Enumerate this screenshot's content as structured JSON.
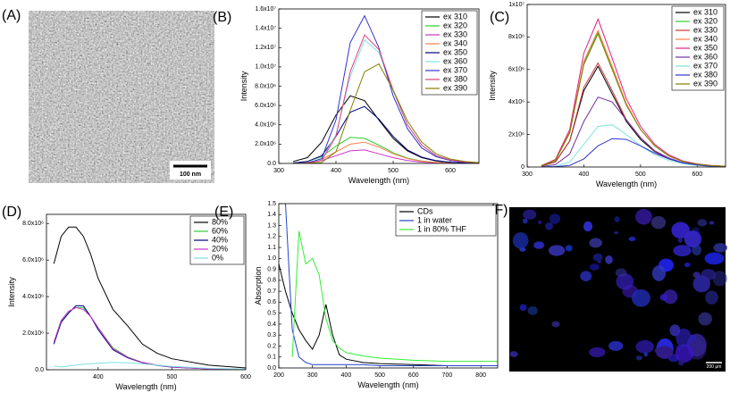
{
  "images": [
    {
      "label": "(A)",
      "scale_bar": "100 nm"
    },
    {
      "label": "(F)",
      "scale_bar": "200 µm"
    }
  ],
  "chart_data": [
    {
      "type": "line",
      "label": "(B)",
      "x_label": "Wavelength (nm)",
      "y_label": "Intensity",
      "legend": "upper right",
      "xlim": [
        300,
        650
      ],
      "xticks": [
        300,
        400,
        500,
        600
      ],
      "ylim": [
        0,
        16000000.0
      ],
      "yticks": [
        {
          "value": 0,
          "label": "0.0"
        },
        {
          "value": 2000000.0,
          "label": "2.0x10⁶"
        },
        {
          "value": 4000000.0,
          "label": "4.0x10⁶"
        },
        {
          "value": 6000000.0,
          "label": "6.0x10⁶"
        },
        {
          "value": 8000000.0,
          "label": "8.0x10⁶"
        },
        {
          "value": 10000000.0,
          "label": "1.0x10⁷"
        },
        {
          "value": 12000000.0,
          "label": "1.2x10⁷"
        },
        {
          "value": 14000000.0,
          "label": "1.4x10⁷"
        },
        {
          "value": 16000000.0,
          "label": "1.6x10⁷"
        }
      ],
      "x": [
        325,
        350,
        375,
        400,
        425,
        450,
        475,
        500,
        525,
        550,
        575,
        600,
        625,
        650
      ],
      "series": [
        {
          "name": "ex 310",
          "color": "#000000",
          "values": [
            200000.0,
            600000.0,
            2200000.0,
            5000000.0,
            7000000.0,
            6500000.0,
            4500000.0,
            2600000.0,
            1300000.0,
            600000.0,
            250000.0,
            100000.0,
            50000.0,
            20000.0
          ]
        },
        {
          "name": "ex 320",
          "color": "#33cc33",
          "values": [
            50000.0,
            200000.0,
            700000.0,
            1800000.0,
            2700000.0,
            2600000.0,
            1900000.0,
            1100000.0,
            550000.0,
            250000.0,
            100000.0,
            50000.0,
            20000.0,
            10000.0
          ]
        },
        {
          "name": "ex 330",
          "color": "#cc33cc",
          "values": [
            20000.0,
            80000.0,
            300000.0,
            800000.0,
            1300000.0,
            1400000.0,
            1000000.0,
            600000.0,
            300000.0,
            140000.0,
            60000.0,
            30000.0,
            10000.0,
            10000.0
          ]
        },
        {
          "name": "ex 340",
          "color": "#ff7f50",
          "values": [
            20000.0,
            100000.0,
            400000.0,
            1200000.0,
            2000000.0,
            2200000.0,
            1700000.0,
            1000000.0,
            500000.0,
            220000.0,
            100000.0,
            40000.0,
            20000.0,
            10000.0
          ]
        },
        {
          "name": "ex 350",
          "color": "#000080",
          "values": [
            50000.0,
            200000.0,
            800000.0,
            2800000.0,
            5300000.0,
            5900000.0,
            4600000.0,
            2800000.0,
            1400000.0,
            650000.0,
            300000.0,
            120000.0,
            50000.0,
            20000.0
          ]
        },
        {
          "name": "ex 360",
          "color": "#7fe0e0",
          "values": [
            0,
            50000.0,
            400000.0,
            3000000.0,
            9000000.0,
            12800000.0,
            11500000.0,
            7500000.0,
            4000000.0,
            1900000.0,
            800000.0,
            350000.0,
            150000.0,
            70000.0
          ]
        },
        {
          "name": "ex 370",
          "color": "#3333cc",
          "values": [
            0,
            50000.0,
            500000.0,
            4500000.0,
            12500000.0,
            15300000.0,
            12000000.0,
            7000000.0,
            3600000.0,
            1600000.0,
            700000.0,
            300000.0,
            120000.0,
            50000.0
          ]
        },
        {
          "name": "ex 380",
          "color": "#e0407f",
          "values": [
            0,
            20000.0,
            300000.0,
            2800000.0,
            9500000.0,
            13300000.0,
            11800000.0,
            7600000.0,
            4000000.0,
            1900000.0,
            800000.0,
            350000.0,
            150000.0,
            60000.0
          ]
        },
        {
          "name": "ex 390",
          "color": "#808000",
          "values": [
            0,
            10000.0,
            100000.0,
            1200000.0,
            5500000.0,
            9500000.0,
            10300000.0,
            7600000.0,
            4400000.0,
            2200000.0,
            1000000.0,
            450000.0,
            200000.0,
            80000.0
          ]
        }
      ]
    },
    {
      "type": "line",
      "label": "(C)",
      "x_label": "Wavelength (nm)",
      "y_label": "Intensity",
      "legend": "upper right",
      "xlim": [
        300,
        650
      ],
      "xticks": [
        300,
        400,
        500,
        600
      ],
      "ylim": [
        0,
        10000000.0
      ],
      "yticks": [
        0,
        {
          "value": 2000000.0,
          "label": "2x10⁶"
        },
        {
          "value": 4000000.0,
          "label": "4x10⁶"
        },
        {
          "value": 6000000.0,
          "label": "6x10⁶"
        },
        {
          "value": 8000000.0,
          "label": "8x10⁶"
        },
        {
          "value": 10000000.0,
          "label": "1x10⁷"
        }
      ],
      "x": [
        325,
        350,
        375,
        400,
        425,
        450,
        475,
        500,
        525,
        550,
        575,
        600,
        625,
        650
      ],
      "series": [
        {
          "name": "ex 310",
          "color": "#000000",
          "values": [
            60000.0,
            320000.0,
            1600000.0,
            4700000.0,
            6200000.0,
            4500000.0,
            2800000.0,
            1700000.0,
            950000.0,
            500000.0,
            250000.0,
            130000.0,
            60000.0,
            30000.0
          ]
        },
        {
          "name": "ex 320",
          "color": "#33cc33",
          "values": [
            90000.0,
            430000.0,
            2100000.0,
            6400000.0,
            8300000.0,
            6100000.0,
            3800000.0,
            2300000.0,
            1300000.0,
            680000.0,
            340000.0,
            170000.0,
            90000.0,
            40000.0
          ]
        },
        {
          "name": "ex 330",
          "color": "#cc3333",
          "values": [
            70000.0,
            330000.0,
            1600000.0,
            4900000.0,
            6400000.0,
            4700000.0,
            2900000.0,
            1800000.0,
            980000.0,
            520000.0,
            260000.0,
            130000.0,
            70000.0,
            30000.0
          ]
        },
        {
          "name": "ex 340",
          "color": "#ff7f50",
          "values": [
            90000.0,
            430000.0,
            2200000.0,
            6500000.0,
            8400000.0,
            6200000.0,
            3900000.0,
            2300000.0,
            1300000.0,
            690000.0,
            340000.0,
            170000.0,
            90000.0,
            40000.0
          ]
        },
        {
          "name": "ex 350",
          "color": "#e0207f",
          "values": [
            90000.0,
            470000.0,
            2300000.0,
            7000000.0,
            9100000.0,
            6700000.0,
            4200000.0,
            2500000.0,
            1400000.0,
            740000.0,
            370000.0,
            190000.0,
            90000.0,
            50000.0
          ]
        },
        {
          "name": "ex 360",
          "color": "#7030a0",
          "values": [
            20000.0,
            150000.0,
            800000.0,
            2800000.0,
            4300000.0,
            4000000.0,
            2900000.0,
            1800000.0,
            1000000.0,
            550000.0,
            270000.0,
            120000.0,
            50000.0,
            20000.0
          ]
        },
        {
          "name": "ex 370",
          "color": "#7fe0e0",
          "values": [
            0,
            50000.0,
            300000.0,
            1400000.0,
            2500000.0,
            2600000.0,
            2000000.0,
            1300000.0,
            750000.0,
            400000.0,
            200000.0,
            100000.0,
            40000.0,
            20000.0
          ]
        },
        {
          "name": "ex 380",
          "color": "#3333cc",
          "values": [
            0,
            20000.0,
            100000.0,
            500000.0,
            1300000.0,
            1750000.0,
            1700000.0,
            1300000.0,
            850000.0,
            500000.0,
            250000.0,
            120000.0,
            50000.0,
            20000.0
          ]
        },
        {
          "name": "ex 390",
          "color": "#808000",
          "values": [
            80000.0,
            420000.0,
            2100000.0,
            6300000.0,
            8200000.0,
            6000000.0,
            3800000.0,
            2300000.0,
            1300000.0,
            670000.0,
            340000.0,
            170000.0,
            80000.0,
            40000.0
          ]
        }
      ]
    },
    {
      "type": "line",
      "label": "(D)",
      "x_label": "Wavelength (nm)",
      "y_label": "Intensity",
      "legend": "upper right",
      "xlim": [
        330,
        600
      ],
      "xticks": [
        400,
        500,
        600
      ],
      "ylim": [
        0,
        8500000.0
      ],
      "yticks": [
        {
          "value": 0,
          "label": "0.0"
        },
        {
          "value": 2000000.0,
          "label": "2.0x10⁶"
        },
        {
          "value": 4000000.0,
          "label": "4.0x10⁶"
        },
        {
          "value": 6000000.0,
          "label": "6.0x10⁶"
        },
        {
          "value": 8000000.0,
          "label": "8.0x10⁶"
        }
      ],
      "x": [
        340,
        350,
        360,
        370,
        380,
        390,
        400,
        420,
        440,
        460,
        480,
        500,
        550,
        600
      ],
      "series": [
        {
          "name": "80%",
          "color": "#000000",
          "values": [
            5800000.0,
            7300000.0,
            7800000.0,
            7800000.0,
            7300000.0,
            6300000.0,
            5000000.0,
            3300000.0,
            2400000.0,
            1400000.0,
            900000.0,
            600000.0,
            250000.0,
            100000.0
          ]
        },
        {
          "name": "60%",
          "color": "#33cc33",
          "values": [
            1500000.0,
            2700000.0,
            3200000.0,
            3400000.0,
            3400000.0,
            2900000.0,
            2300000.0,
            1200000.0,
            700000.0,
            400000.0,
            250000.0,
            150000.0,
            50000.0,
            20000.0
          ]
        },
        {
          "name": "40%",
          "color": "#000080",
          "values": [
            1400000.0,
            2600000.0,
            3100000.0,
            3500000.0,
            3500000.0,
            2900000.0,
            2200000.0,
            1100000.0,
            650000.0,
            380000.0,
            240000.0,
            140000.0,
            50000.0,
            20000.0
          ]
        },
        {
          "name": "20%",
          "color": "#cc33cc",
          "values": [
            1500000.0,
            2700000.0,
            3200000.0,
            3400000.0,
            3300000.0,
            2900000.0,
            2300000.0,
            1150000.0,
            680000.0,
            400000.0,
            250000.0,
            150000.0,
            50000.0,
            20000.0
          ]
        },
        {
          "name": "0%",
          "color": "#7fe0e0",
          "values": [
            200000.0,
            150000.0,
            200000.0,
            250000.0,
            300000.0,
            320000.0,
            350000.0,
            400000.0,
            380000.0,
            320000.0,
            250000.0,
            180000.0,
            80000.0,
            30000.0
          ]
        }
      ]
    },
    {
      "type": "line",
      "label": "(E)",
      "x_label": "Wavelength (nm)",
      "y_label": "Absorption",
      "legend": "upper right",
      "xlim": [
        200,
        850
      ],
      "xticks": [
        200,
        300,
        400,
        500,
        600,
        700,
        800
      ],
      "ylim": [
        0,
        1.5
      ],
      "yticks": [
        {
          "value": 0,
          "label": "0.0"
        },
        0.1,
        0.2,
        0.3,
        0.4,
        0.5,
        0.6,
        0.7,
        0.8,
        0.9,
        {
          "value": 1,
          "label": "1.0"
        },
        1.1,
        1.2,
        1.3,
        1.4,
        1.5
      ],
      "x": [
        200,
        220,
        240,
        260,
        280,
        300,
        320,
        340,
        360,
        380,
        400,
        450,
        500,
        600,
        700,
        800,
        850
      ],
      "series": [
        {
          "name": "CDs",
          "color": "#000000",
          "values": [
            0.95,
            0.7,
            0.5,
            0.35,
            0.25,
            0.17,
            0.3,
            0.58,
            0.3,
            0.12,
            0.08,
            0.05,
            0.04,
            0.03,
            0.02,
            0.02,
            0.02
          ]
        },
        {
          "name": "1 in water",
          "color": "#2244cc",
          "values": [
            1.5,
            1.5,
            0.35,
            0.1,
            0.05,
            0.03,
            0.03,
            0.03,
            0.03,
            0.03,
            0.03,
            0.03,
            0.02,
            0.02,
            0.02,
            0.02,
            0.02
          ]
        },
        {
          "name": "1 in 80% THF",
          "color": "#33ee33",
          "values": [
            null,
            null,
            0.1,
            1.25,
            0.95,
            1.0,
            0.85,
            0.45,
            0.25,
            0.18,
            0.14,
            0.11,
            0.09,
            0.07,
            0.06,
            0.06,
            0.06
          ]
        }
      ]
    }
  ]
}
